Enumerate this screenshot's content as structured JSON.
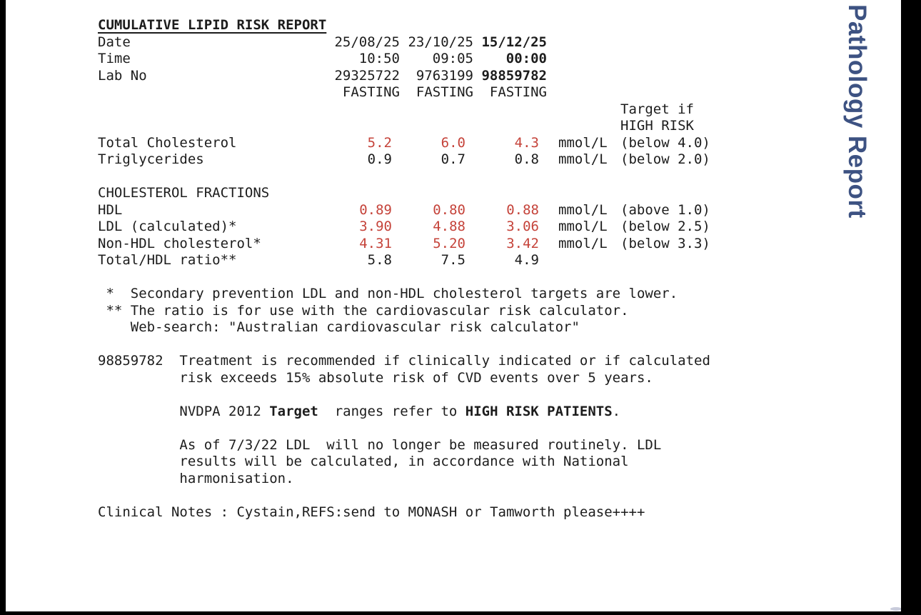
{
  "colors": {
    "abnormal_value_red": "#c5433a",
    "side_label_blue": "#3d5282",
    "body_text": "#1c1c1c",
    "frame_black": "#000000",
    "page_background": "#ffffff"
  },
  "side_label": "Pathology Report",
  "report": {
    "title": "CUMULATIVE LIPID RISK REPORT",
    "date_row": {
      "label": "Date",
      "c1": "25/08/25",
      "c2": "23/10/25",
      "c3": "15/12/25"
    },
    "time_row": {
      "label": "Time",
      "c1": "10:50",
      "c2": "09:05",
      "c3": "00:00"
    },
    "lab_row": {
      "label": "Lab No",
      "c1": "29325722",
      "c2": "9763199",
      "c3": "98859782"
    },
    "fasting_row": {
      "c1": "FASTING",
      "c2": "FASTING",
      "c3": "FASTING"
    },
    "target_header": {
      "line1": "Target if",
      "line2": "HIGH RISK"
    },
    "results": [
      {
        "label": "Total Cholesterol",
        "c1": "5.2",
        "c2": "6.0",
        "c3": "4.3",
        "unit": "mmol/L",
        "target": "(below 4.0)",
        "abnormal": true
      },
      {
        "label": "Triglycerides",
        "c1": "0.9",
        "c2": "0.7",
        "c3": "0.8",
        "unit": "mmol/L",
        "target": "(below 2.0)",
        "abnormal": false
      }
    ],
    "fractions_heading": "CHOLESTEROL FRACTIONS",
    "fractions": [
      {
        "label": "HDL",
        "c1": "0.89",
        "c2": "0.80",
        "c3": "0.88",
        "unit": "mmol/L",
        "target": "(above 1.0)",
        "abnormal": true
      },
      {
        "label": "LDL (calculated)*",
        "c1": "3.90",
        "c2": "4.88",
        "c3": "3.06",
        "unit": "mmol/L",
        "target": "(below 2.5)",
        "abnormal": true
      },
      {
        "label": "Non-HDL cholesterol*",
        "c1": "4.31",
        "c2": "5.20",
        "c3": "3.42",
        "unit": "mmol/L",
        "target": "(below 3.3)",
        "abnormal": true
      },
      {
        "label": "Total/HDL ratio**",
        "c1": "5.8",
        "c2": "7.5",
        "c3": "4.9",
        "unit": "",
        "target": "",
        "abnormal": false
      }
    ],
    "footnotes": [
      " *  Secondary prevention LDL and non-HDL cholesterol targets are lower.",
      " ** The ratio is for use with the cardiovascular risk calculator.",
      "    Web-search: \"Australian cardiovascular risk calculator\""
    ],
    "comment": {
      "line1": "98859782  Treatment is recommended if clinically indicated or if calculated",
      "line2": "          risk exceeds 15% absolute risk of CVD events over 5 years.",
      "nvdpa_pre": "          NVDPA 2012 ",
      "nvdpa_bold1": "Target",
      "nvdpa_mid": "  ranges refer to ",
      "nvdpa_bold2": "HIGH RISK PATIENTS",
      "nvdpa_post": ".",
      "ldl_line1": "          As of 7/3/22 LDL  will no longer be measured routinely. LDL",
      "ldl_line2": "          results will be calculated, in accordance with National",
      "ldl_line3": "          harmonisation."
    },
    "clinical_notes": "Clinical Notes : Cystain,REFS:send to MONASH or Tamworth please++++"
  }
}
